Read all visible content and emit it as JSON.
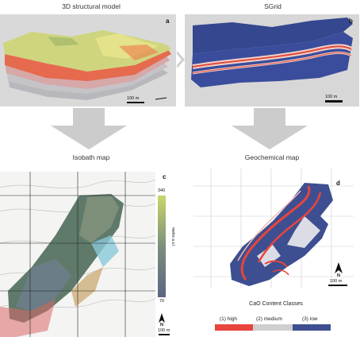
{
  "panels": {
    "a": {
      "title": "3D structural model",
      "letter": "a",
      "scale": "100 m"
    },
    "b": {
      "title": "SGrid",
      "letter": "b",
      "scale": "100 m"
    },
    "c": {
      "title": "Isobath map",
      "letter": "c",
      "scale": "100 m",
      "colorbar_max": "340",
      "colorbar_min": "70",
      "colorbar_unit": "metre a.s.l.",
      "north": "N"
    },
    "d": {
      "title": "Geochemical map",
      "letter": "d",
      "scale": "100 m",
      "north": "N"
    }
  },
  "legend": {
    "title": "CaO Content Classes",
    "classes": [
      {
        "label": "(1) high",
        "color": "#e8453c"
      },
      {
        "label": "(2) medium",
        "color": "#cfcfcf"
      },
      {
        "label": "(3) low",
        "color": "#3d4f91"
      }
    ]
  },
  "colors": {
    "arrow": "#cccccc",
    "panel_bg": "#d7d7d7",
    "sgrid_blue": "#3a4d9c",
    "geo_low": "#3d4f91",
    "geo_high": "#e8453c"
  }
}
